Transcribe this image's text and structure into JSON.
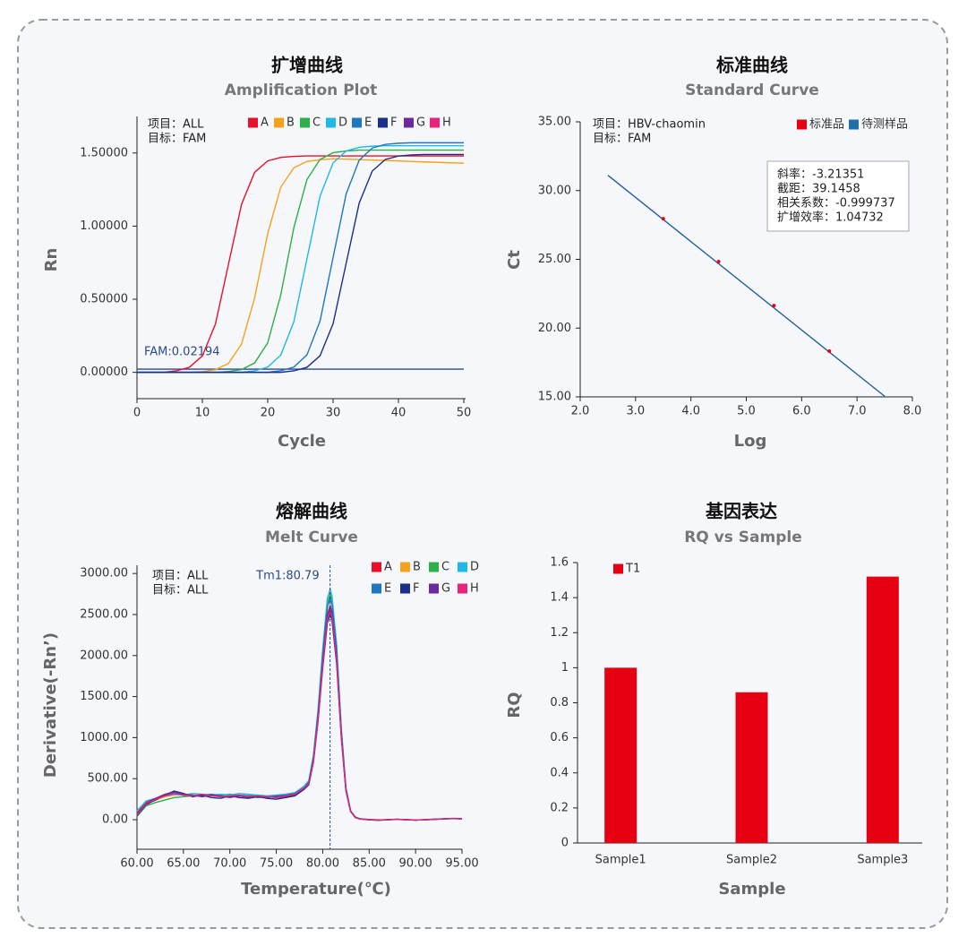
{
  "chart_data": [
    {
      "type": "line",
      "title": "扩增曲线",
      "subtitle": "Amplification Plot",
      "x_label": "Cycle",
      "y_label": "Rn",
      "annotations": [
        "项目：ALL",
        "目标：FAM"
      ],
      "xlim": [
        0,
        50
      ],
      "xticks": [
        0,
        10,
        20,
        30,
        40,
        50
      ],
      "ylim": [
        -0.18,
        1.75
      ],
      "yticks": [
        {
          "value": 0,
          "label": "0.00000"
        },
        {
          "value": 0.5,
          "label": "0.50000"
        },
        {
          "value": 1,
          "label": "1.00000"
        },
        {
          "value": 1.5,
          "label": "1.50000"
        }
      ],
      "threshold": {
        "label": "FAM:0.02194",
        "value": 0.02194,
        "color": "#2a4a8a"
      },
      "x": [
        0,
        2,
        4,
        6,
        8,
        10,
        12,
        14,
        16,
        18,
        20,
        22,
        24,
        26,
        28,
        30,
        32,
        34,
        36,
        38,
        40,
        42,
        44,
        46,
        48,
        50
      ],
      "series": [
        {
          "name": "A",
          "color": "#e8102a",
          "values": [
            0,
            0,
            0,
            0.01,
            0.034,
            0.112,
            0.33,
            0.74,
            1.15,
            1.368,
            1.446,
            1.47,
            1.477,
            1.48,
            1.48,
            1.48,
            1.48,
            1.48,
            1.48,
            1.48,
            1.48,
            1.48,
            1.48,
            1.48,
            1.48,
            1.48
          ]
        },
        {
          "name": "B",
          "color": "#f5a11c",
          "values": [
            0,
            0,
            0,
            0,
            0,
            0.005,
            0.018,
            0.061,
            0.194,
            0.51,
            0.95,
            1.266,
            1.399,
            1.442,
            1.454,
            1.46,
            1.458,
            1.455,
            1.452,
            1.449,
            1.446,
            1.442,
            1.439,
            1.436,
            1.433,
            1.43
          ]
        },
        {
          "name": "C",
          "color": "#2bb04a",
          "values": [
            0,
            0,
            0,
            0,
            0,
            0,
            0,
            0.006,
            0.019,
            0.064,
            0.202,
            0.53,
            0.99,
            1.318,
            1.456,
            1.502,
            1.514,
            1.52,
            1.52,
            1.52,
            1.52,
            1.52,
            1.52,
            1.52,
            1.52,
            1.52
          ]
        },
        {
          "name": "D",
          "color": "#1fb8e8",
          "values": [
            0,
            0,
            0,
            0,
            0,
            0,
            0,
            0,
            0,
            0.01,
            0.036,
            0.118,
            0.346,
            0.775,
            1.204,
            1.432,
            1.514,
            1.539,
            1.547,
            1.55,
            1.55,
            1.55,
            1.55,
            1.55,
            1.55,
            1.55
          ]
        },
        {
          "name": "E",
          "color": "#1f77c0",
          "values": [
            0,
            0,
            0,
            0,
            0,
            0,
            0,
            0,
            0,
            0,
            0,
            0.011,
            0.036,
            0.119,
            0.35,
            0.785,
            1.22,
            1.451,
            1.534,
            1.559,
            1.567,
            1.57,
            1.57,
            1.57,
            1.57,
            1.57
          ]
        },
        {
          "name": "F",
          "color": "#1c2f8a",
          "values": [
            0,
            0,
            0,
            0,
            0,
            0,
            0,
            0,
            0,
            0,
            0,
            0,
            0.01,
            0.034,
            0.113,
            0.332,
            0.745,
            1.158,
            1.377,
            1.456,
            1.479,
            1.487,
            1.49,
            1.49,
            1.49,
            1.49
          ]
        },
        {
          "name": "G",
          "color": "#6a2c9c",
          "values": [
            null,
            null,
            null,
            null,
            null,
            null,
            null,
            null,
            null,
            null,
            null,
            null,
            null,
            null,
            null,
            null,
            null,
            null,
            null,
            null,
            null,
            null,
            null,
            null,
            null,
            null
          ]
        },
        {
          "name": "H",
          "color": "#e8237a",
          "values": [
            null,
            null,
            null,
            null,
            null,
            null,
            null,
            null,
            null,
            null,
            null,
            null,
            null,
            null,
            null,
            null,
            null,
            null,
            null,
            null,
            null,
            null,
            null,
            null,
            null,
            null
          ]
        }
      ]
    },
    {
      "type": "scatter",
      "title": "标准曲线",
      "subtitle": "Standard Curve",
      "x_label": "Log",
      "y_label": "Ct",
      "annotations": [
        "项目：HBV-chaomin",
        "目标：FAM"
      ],
      "stats": [
        "斜率：-3.21351",
        "截距：39.1458",
        "相关系数：-0.999737",
        "扩增效率：1.04732"
      ],
      "xlim": [
        2,
        8
      ],
      "xticks": [
        {
          "value": 2,
          "label": "2.0"
        },
        {
          "value": 3,
          "label": "3.0"
        },
        {
          "value": 4,
          "label": "4.0"
        },
        {
          "value": 5,
          "label": "5.0"
        },
        {
          "value": 6,
          "label": "6.0"
        },
        {
          "value": 7,
          "label": "7.0"
        },
        {
          "value": 8,
          "label": "8.0"
        }
      ],
      "ylim": [
        15,
        35
      ],
      "yticks": [
        {
          "value": 15,
          "label": "15.00"
        },
        {
          "value": 20,
          "label": "20.00"
        },
        {
          "value": 25,
          "label": "25.00"
        },
        {
          "value": 30,
          "label": "30.00"
        },
        {
          "value": 35,
          "label": "35.00"
        }
      ],
      "fit": {
        "x": [
          2.5,
          7.5
        ],
        "values": [
          31.11,
          15.04
        ],
        "color": "#1f5f9f"
      },
      "series": [
        {
          "name": "标准品",
          "color": "#e60012",
          "x": [
            3.5,
            4.5,
            5.5,
            6.5
          ],
          "values": [
            27.96,
            24.84,
            21.64,
            18.32
          ]
        },
        {
          "name": "待测样品",
          "color": "#1f6fa8",
          "x": [],
          "values": []
        }
      ]
    },
    {
      "type": "line",
      "title": "熔解曲线",
      "subtitle": "Melt Curve",
      "x_label": "Temperature(℃)",
      "y_label": "Derivative(-Rn’)",
      "annotations": [
        "项目：ALL",
        "目标：ALL"
      ],
      "xlim": [
        60,
        95
      ],
      "xticks": [
        {
          "value": 60,
          "label": "60.00"
        },
        {
          "value": 65,
          "label": "65.00"
        },
        {
          "value": 70,
          "label": "70.00"
        },
        {
          "value": 75,
          "label": "75.00"
        },
        {
          "value": 80,
          "label": "80.00"
        },
        {
          "value": 85,
          "label": "85.00"
        },
        {
          "value": 90,
          "label": "90.00"
        },
        {
          "value": 95,
          "label": "95.00"
        }
      ],
      "ylim": [
        -360,
        3100
      ],
      "yticks": [
        {
          "value": 0,
          "label": "0.00"
        },
        {
          "value": 500,
          "label": "500.00"
        },
        {
          "value": 1000,
          "label": "1000.00"
        },
        {
          "value": 1500,
          "label": "1500.00"
        },
        {
          "value": 2000,
          "label": "2000.00"
        },
        {
          "value": 2500,
          "label": "2500.00"
        },
        {
          "value": 3000,
          "label": "3000.00"
        }
      ],
      "marker": {
        "label": "Tm1:80.79",
        "value": 80.79,
        "color": "#2a4a8a"
      },
      "x": [
        60,
        61,
        62,
        63,
        64,
        65,
        66,
        67,
        68,
        69,
        70,
        71,
        72,
        73,
        74,
        75,
        76,
        77,
        78,
        78.5,
        79,
        79.5,
        80,
        80.5,
        80.8,
        81,
        81.5,
        82,
        82.5,
        83,
        83.5,
        84,
        85,
        86,
        87,
        88,
        89,
        90,
        91,
        92,
        93,
        94,
        95
      ],
      "series": [
        {
          "name": "A",
          "color": "#e8102a",
          "values": [
            60,
            180,
            250,
            290,
            320,
            300,
            290,
            310,
            300,
            280,
            300,
            290,
            270,
            290,
            280,
            270,
            280,
            300,
            380,
            439,
            722,
            1238,
            1909,
            2477,
            2580,
            2503,
            1961,
            1032,
            361,
            103,
            30,
            10,
            0,
            -5,
            0,
            5,
            0,
            -5,
            0,
            5,
            10,
            15,
            10
          ]
        },
        {
          "name": "B",
          "color": "#f5a11c",
          "values": [
            90,
            220,
            240,
            280,
            300,
            310,
            300,
            290,
            310,
            300,
            290,
            300,
            290,
            280,
            290,
            280,
            290,
            310,
            390,
            445,
            734,
            1258,
            1939,
            2515,
            2620,
            2541,
            1991,
            1048,
            367,
            105,
            25,
            8,
            2,
            0,
            -3,
            5,
            2,
            -4,
            0,
            6,
            12,
            14,
            12
          ]
        },
        {
          "name": "C",
          "color": "#2bb04a",
          "values": [
            40,
            170,
            210,
            240,
            270,
            280,
            290,
            300,
            290,
            300,
            310,
            300,
            290,
            300,
            290,
            280,
            290,
            320,
            400,
            468,
            770,
            1320,
            2035,
            2640,
            2750,
            2668,
            2090,
            1100,
            385,
            110,
            35,
            12,
            0,
            -8,
            0,
            4,
            0,
            -6,
            2,
            6,
            8,
            12,
            10
          ]
        },
        {
          "name": "D",
          "color": "#1fb8e8",
          "values": [
            110,
            230,
            260,
            290,
            310,
            300,
            320,
            310,
            300,
            310,
            300,
            320,
            310,
            300,
            290,
            300,
            310,
            330,
            410,
            478,
            787,
            1349,
            2079,
            2698,
            2810,
            2726,
            2136,
            1124,
            393,
            112,
            35,
            12,
            3,
            -4,
            2,
            6,
            0,
            -3,
            0,
            8,
            12,
            16,
            14
          ]
        },
        {
          "name": "E",
          "color": "#1f77c0",
          "values": [
            70,
            200,
            250,
            300,
            330,
            310,
            290,
            300,
            310,
            290,
            280,
            300,
            290,
            270,
            280,
            290,
            300,
            320,
            390,
            459,
            756,
            1296,
            1998,
            2592,
            2700,
            2619,
            2052,
            1080,
            378,
            108,
            30,
            10,
            0,
            -5,
            2,
            5,
            0,
            -5,
            0,
            5,
            10,
            14,
            12
          ]
        },
        {
          "name": "F",
          "color": "#1c2f8a",
          "values": [
            50,
            190,
            240,
            300,
            350,
            320,
            280,
            300,
            270,
            260,
            290,
            270,
            260,
            280,
            260,
            250,
            270,
            290,
            370,
            425,
            700,
            1200,
            1850,
            2400,
            2500,
            2425,
            1900,
            1000,
            350,
            100,
            28,
            9,
            -2,
            -6,
            0,
            4,
            0,
            -5,
            -2,
            4,
            10,
            15,
            10
          ]
        },
        {
          "name": "G",
          "color": "#6a2c9c",
          "values": [
            80,
            210,
            260,
            310,
            340,
            310,
            300,
            280,
            300,
            290,
            270,
            290,
            280,
            290,
            270,
            280,
            290,
            310,
            380,
            442,
            728,
            1248,
            1924,
            2496,
            2600,
            2522,
            1976,
            1040,
            364,
            104,
            30,
            10,
            2,
            -3,
            0,
            5,
            2,
            -4,
            0,
            5,
            10,
            16,
            12
          ]
        },
        {
          "name": "H",
          "color": "#e8237a",
          "values": [
            60,
            200,
            250,
            290,
            320,
            300,
            290,
            310,
            290,
            280,
            290,
            300,
            280,
            290,
            280,
            270,
            290,
            310,
            390,
            434,
            714,
            1224,
            1887,
            2448,
            2550,
            2474,
            1938,
            1020,
            357,
            102,
            32,
            10,
            0,
            -5,
            0,
            5,
            0,
            -5,
            0,
            5,
            10,
            15,
            10
          ]
        }
      ]
    },
    {
      "type": "bar",
      "title": "基因表达",
      "subtitle": "RQ vs Sample",
      "x_label": "Sample",
      "y_label": "RQ",
      "categories": [
        "Sample1",
        "Sample2",
        "Sample3"
      ],
      "ylim": [
        0,
        1.6
      ],
      "yticks": [
        0,
        0.2,
        0.4,
        0.6,
        0.8,
        1,
        1.2,
        1.4,
        1.6
      ],
      "series": [
        {
          "name": "T1",
          "color": "#e60012",
          "values": [
            1,
            0.86,
            1.52
          ]
        }
      ]
    }
  ]
}
